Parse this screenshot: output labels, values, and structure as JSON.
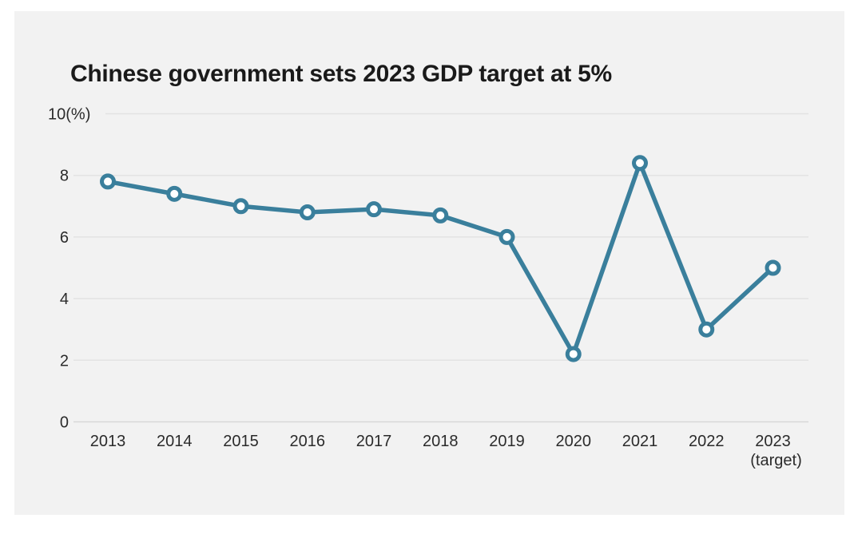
{
  "page": {
    "background_color": "#ffffff",
    "panel_background_color": "#f2f2f2"
  },
  "chart_data": {
    "type": "line",
    "title": "Chinese government sets 2023 GDP target at 5%",
    "categories": [
      "2013",
      "2014",
      "2015",
      "2016",
      "2017",
      "2018",
      "2019",
      "2020",
      "2021",
      "2022",
      "2023"
    ],
    "last_category_note": "(target)",
    "values": [
      7.8,
      7.4,
      7.0,
      6.8,
      6.9,
      6.7,
      6.0,
      2.2,
      8.4,
      3.0,
      5.0
    ],
    "unit": "%",
    "xlabel": "",
    "ylabel": "(%)",
    "ylim": [
      0,
      10
    ],
    "yticks": [
      0,
      2,
      4,
      6,
      8,
      10
    ],
    "ytick_labels": [
      "0",
      "2",
      "4",
      "6",
      "8",
      "10(%)"
    ],
    "grid": true,
    "legend_position": "none",
    "marker": "open-circle",
    "line_color": "#3a7f9c",
    "marker_fill": "#ffffff",
    "grid_color": "#e3e3e3",
    "zero_line_color": "#d7d7d7",
    "title_color": "#1a1a1a",
    "tick_color": "#2b2b2b"
  }
}
